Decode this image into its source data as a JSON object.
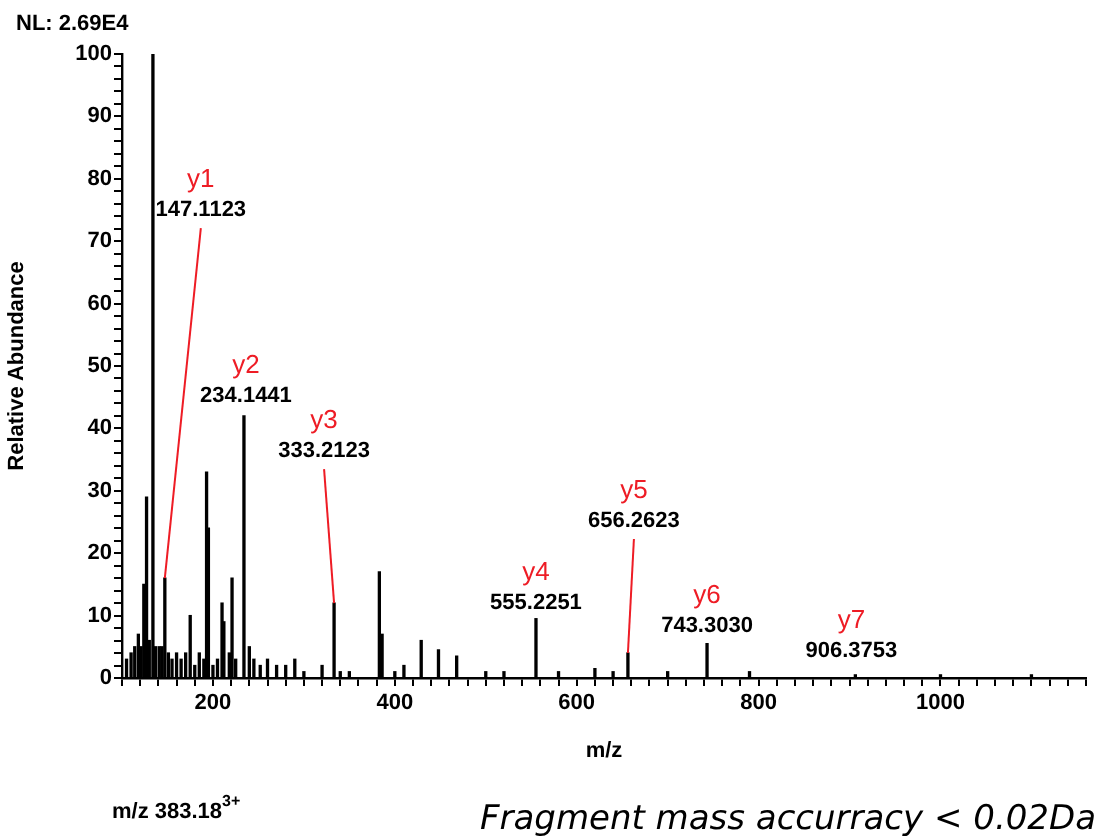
{
  "chart_data": {
    "type": "bar",
    "xlabel": "m/z",
    "ylabel": "Relative Abundance",
    "color": "#000000",
    "grid": false,
    "legend": false,
    "x": [
      105,
      110,
      114,
      118,
      121,
      124,
      127,
      130,
      134,
      137,
      141,
      144,
      147.1,
      151,
      155,
      160,
      165,
      170,
      175,
      180,
      185,
      190,
      193,
      195,
      200,
      205,
      210,
      212,
      218,
      221,
      225,
      234.1,
      240,
      245,
      252,
      260,
      270,
      280,
      290,
      300,
      320,
      333.2,
      340,
      350,
      383,
      386,
      400,
      410,
      429,
      448,
      468,
      500,
      520,
      555.2,
      580,
      620,
      640,
      656.3,
      700,
      743.3,
      790,
      906.4,
      1000,
      1100
    ],
    "values": [
      3,
      4,
      5,
      7,
      5,
      15,
      29,
      6,
      100,
      5,
      5,
      5,
      16,
      4,
      3,
      4,
      3,
      4,
      10,
      2,
      4,
      3,
      33,
      24,
      2,
      3,
      12,
      9,
      4,
      16,
      3,
      42,
      5,
      3,
      2,
      3,
      2,
      2,
      3,
      1,
      2,
      12,
      1,
      1,
      17,
      7,
      1,
      2,
      6,
      4.5,
      3.5,
      1,
      1,
      9.5,
      1,
      1.5,
      1,
      4,
      1,
      5.5,
      1,
      0.5,
      0.5,
      0.5
    ],
    "xlim": [
      100,
      1160
    ],
    "ylim": [
      0,
      100
    ],
    "xticks": [
      {
        "value": 100,
        "label": null
      },
      {
        "value": 120,
        "label": null
      },
      {
        "value": 140,
        "label": null
      },
      {
        "value": 160,
        "label": null
      },
      {
        "value": 180,
        "label": null
      },
      200,
      {
        "value": 220,
        "label": null
      },
      {
        "value": 240,
        "label": null
      },
      {
        "value": 260,
        "label": null
      },
      {
        "value": 280,
        "label": null
      },
      {
        "value": 300,
        "label": null
      },
      {
        "value": 320,
        "label": null
      },
      {
        "value": 340,
        "label": null
      },
      {
        "value": 360,
        "label": null
      },
      {
        "value": 380,
        "label": null
      },
      400,
      {
        "value": 420,
        "label": null
      },
      {
        "value": 440,
        "label": null
      },
      {
        "value": 460,
        "label": null
      },
      {
        "value": 480,
        "label": null
      },
      {
        "value": 500,
        "label": null
      },
      {
        "value": 520,
        "label": null
      },
      {
        "value": 540,
        "label": null
      },
      {
        "value": 560,
        "label": null
      },
      {
        "value": 580,
        "label": null
      },
      600,
      {
        "value": 620,
        "label": null
      },
      {
        "value": 640,
        "label": null
      },
      {
        "value": 660,
        "label": null
      },
      {
        "value": 680,
        "label": null
      },
      {
        "value": 700,
        "label": null
      },
      {
        "value": 720,
        "label": null
      },
      {
        "value": 740,
        "label": null
      },
      {
        "value": 760,
        "label": null
      },
      {
        "value": 780,
        "label": null
      },
      800,
      {
        "value": 820,
        "label": null
      },
      {
        "value": 840,
        "label": null
      },
      {
        "value": 860,
        "label": null
      },
      {
        "value": 880,
        "label": null
      },
      {
        "value": 900,
        "label": null
      },
      {
        "value": 920,
        "label": null
      },
      {
        "value": 940,
        "label": null
      },
      {
        "value": 960,
        "label": null
      },
      {
        "value": 980,
        "label": null
      },
      1000,
      {
        "value": 1020,
        "label": null
      },
      {
        "value": 1040,
        "label": null
      },
      {
        "value": 1060,
        "label": null
      },
      {
        "value": 1080,
        "label": null
      },
      {
        "value": 1100,
        "label": null
      },
      {
        "value": 1120,
        "label": null
      },
      {
        "value": 1140,
        "label": null
      },
      {
        "value": 1160,
        "label": null
      }
    ],
    "yticks": [
      0,
      {
        "value": 2,
        "label": null
      },
      {
        "value": 4,
        "label": null
      },
      {
        "value": 6,
        "label": null
      },
      {
        "value": 8,
        "label": null
      },
      10,
      {
        "value": 12,
        "label": null
      },
      {
        "value": 14,
        "label": null
      },
      {
        "value": 16,
        "label": null
      },
      {
        "value": 18,
        "label": null
      },
      20,
      {
        "value": 22,
        "label": null
      },
      {
        "value": 24,
        "label": null
      },
      {
        "value": 26,
        "label": null
      },
      {
        "value": 28,
        "label": null
      },
      30,
      {
        "value": 32,
        "label": null
      },
      {
        "value": 34,
        "label": null
      },
      {
        "value": 36,
        "label": null
      },
      {
        "value": 38,
        "label": null
      },
      40,
      {
        "value": 42,
        "label": null
      },
      {
        "value": 44,
        "label": null
      },
      {
        "value": 46,
        "label": null
      },
      {
        "value": 48,
        "label": null
      },
      50,
      {
        "value": 52,
        "label": null
      },
      {
        "value": 54,
        "label": null
      },
      {
        "value": 56,
        "label": null
      },
      {
        "value": 58,
        "label": null
      },
      60,
      {
        "value": 62,
        "label": null
      },
      {
        "value": 64,
        "label": null
      },
      {
        "value": 66,
        "label": null
      },
      {
        "value": 68,
        "label": null
      },
      70,
      {
        "value": 72,
        "label": null
      },
      {
        "value": 74,
        "label": null
      },
      {
        "value": 76,
        "label": null
      },
      {
        "value": 78,
        "label": null
      },
      80,
      {
        "value": 82,
        "label": null
      },
      {
        "value": 84,
        "label": null
      },
      {
        "value": 86,
        "label": null
      },
      {
        "value": 88,
        "label": null
      },
      90,
      {
        "value": 92,
        "label": null
      },
      {
        "value": 94,
        "label": null
      },
      {
        "value": 96,
        "label": null
      },
      {
        "value": 98,
        "label": null
      },
      100
    ],
    "annotations": [
      "y1",
      {
        "text": "147.1123",
        "x": 147.1,
        "y": 16
      },
      "y2",
      {
        "text": "234.1441",
        "x": 234.1,
        "y": 42
      },
      "y3",
      {
        "text": "333.2123",
        "x": 333.2,
        "y": 12
      },
      "y4",
      {
        "text": "555.2251",
        "x": 555.2,
        "y": 9.5
      },
      "y5",
      {
        "text": "656.2623",
        "x": 656.3,
        "y": 4
      },
      "y6",
      {
        "text": "743.3030",
        "x": 743.3,
        "y": 5.5
      },
      "y7",
      {
        "text": "906.3753",
        "x": 906.4,
        "y": 0.5
      },
      "NL: 2.69E4",
      "m/z 383.18$^{3+}$",
      "Fragment mass accurracy < 0.02Da"
    ]
  }
}
